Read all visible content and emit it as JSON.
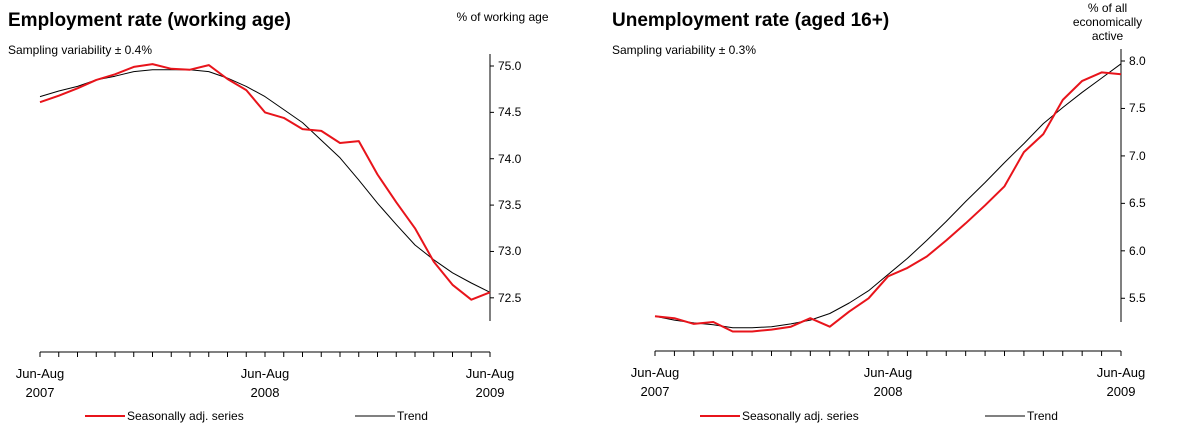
{
  "chart_data": [
    {
      "type": "line",
      "title": "Employment rate (working age)",
      "subtitle": "Sampling variability ± 0.4%",
      "y_label": "% of working age",
      "categories": [
        "Jun-Aug 2007",
        null,
        null,
        null,
        null,
        null,
        null,
        null,
        null,
        null,
        null,
        null,
        "Jun-Aug 2008",
        null,
        null,
        null,
        null,
        null,
        null,
        null,
        null,
        null,
        null,
        null,
        "Jun-Aug 2009"
      ],
      "series": [
        {
          "name": "Seasonally adj. series",
          "color": "#e8141b",
          "values": [
            74.61,
            74.68,
            74.76,
            74.85,
            74.91,
            74.99,
            75.02,
            74.97,
            74.96,
            75.01,
            74.86,
            74.74,
            74.5,
            74.44,
            74.32,
            74.3,
            74.17,
            74.19,
            73.83,
            73.53,
            73.25,
            72.89,
            72.64,
            72.48,
            72.56
          ]
        },
        {
          "name": "Trend",
          "color": "#000000",
          "values": [
            74.67,
            74.73,
            74.78,
            74.85,
            74.89,
            74.94,
            74.96,
            74.96,
            74.96,
            74.94,
            74.87,
            74.78,
            74.67,
            74.53,
            74.39,
            74.2,
            74.01,
            73.77,
            73.52,
            73.29,
            73.07,
            72.91,
            72.77,
            72.66,
            72.56
          ]
        }
      ],
      "ylim": [
        72.25,
        75.0
      ],
      "yticks": [
        72.5,
        {
          "value": 73,
          "label": "73.0"
        },
        73.5,
        {
          "value": 74,
          "label": "74.0"
        },
        74.5,
        {
          "value": 75,
          "label": "75.0"
        }
      ],
      "legend": "bottom"
    },
    {
      "type": "line",
      "title": "Unemployment rate (aged 16+)",
      "subtitle": "Sampling variability ± 0.3%",
      "y_label": "% of all economically active",
      "categories": [
        "Jun-Aug 2007",
        null,
        null,
        null,
        null,
        null,
        null,
        null,
        null,
        null,
        null,
        null,
        "Jun-Aug 2008",
        null,
        null,
        null,
        null,
        null,
        null,
        null,
        null,
        null,
        null,
        null,
        "Jun-Aug 2009"
      ],
      "series": [
        {
          "name": "Seasonally adj. series",
          "color": "#e8141b",
          "values": [
            5.31,
            5.29,
            5.23,
            5.25,
            5.15,
            5.15,
            5.17,
            5.2,
            5.29,
            5.2,
            5.36,
            5.5,
            5.73,
            5.82,
            5.94,
            6.11,
            6.29,
            6.48,
            6.68,
            7.04,
            7.23,
            7.59,
            7.79,
            7.88,
            7.86
          ]
        },
        {
          "name": "Trend",
          "color": "#000000",
          "values": [
            5.31,
            5.27,
            5.24,
            5.22,
            5.19,
            5.19,
            5.2,
            5.23,
            5.27,
            5.34,
            5.45,
            5.58,
            5.75,
            5.92,
            6.11,
            6.31,
            6.52,
            6.72,
            6.93,
            7.13,
            7.34,
            7.51,
            7.67,
            7.82,
            7.97
          ]
        }
      ],
      "ylim": [
        5.25,
        8.0
      ],
      "yticks": [
        5.5,
        {
          "value": 6,
          "label": "6.0"
        },
        6.5,
        {
          "value": 7,
          "label": "7.0"
        },
        7.5,
        {
          "value": 8,
          "label": "8.0"
        }
      ],
      "legend": "bottom"
    }
  ]
}
